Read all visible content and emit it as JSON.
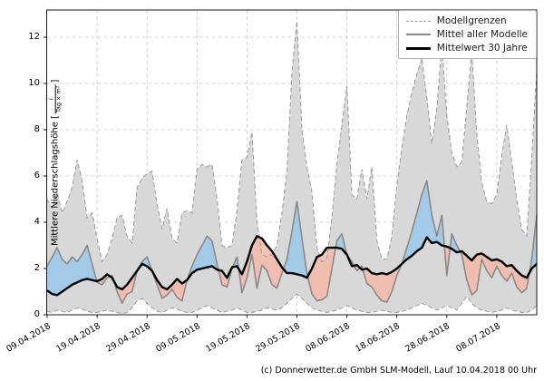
{
  "legend": {
    "items": [
      {
        "label": "Modellgrenzen",
        "style": "dashed-gray"
      },
      {
        "label": "Mittel aller Modelle",
        "style": "solid-gray"
      },
      {
        "label": "Mittelwert 30 Jahre",
        "style": "solid-black-thick"
      }
    ]
  },
  "axes": {
    "ylabel_prefix": "Mittlere Niederschlagshöhe [",
    "ylabel_suffix": "]",
    "unit_numerator": "l",
    "unit_denominator": "Tag × m²"
  },
  "footer": {
    "caption": "(c) Donnerwetter.de GmbH SLM-Modell, Lauf 10.04.2018 00 Uhr"
  },
  "colors": {
    "band_fill": "#d8d8d8",
    "band_edge": "#9a9a9a",
    "mean_line": "#8a8a8a",
    "clim_line": "#000000",
    "above_fill": "rgba(150,200,235,0.8)",
    "below_fill": "rgba(245,185,170,0.85)",
    "grid": "#c8c8c8",
    "spine": "#1a1a1a"
  },
  "chart_data": {
    "type": "area",
    "title": "",
    "xlabel": "",
    "ylabel": "Mittlere Niederschlagshöhe [l / (Tag × m²)]",
    "x_unit": "Tage ab 09.04.2018 (Tagesindex 0–98)",
    "x_tick_days": [
      0,
      10,
      20,
      30,
      40,
      50,
      60,
      70,
      80,
      90
    ],
    "x_tick_labels": [
      "09.04.2018",
      "19.04.2018",
      "29.04.2018",
      "09.05.2018",
      "19.05.2018",
      "29.05.2018",
      "08.06.2018",
      "18.06.2018",
      "28.06.2018",
      "08.07.2018"
    ],
    "y_ticks": [
      0,
      2,
      4,
      6,
      8,
      10,
      12
    ],
    "ylim": [
      0,
      13.18
    ],
    "grid": true,
    "legend_position": "upper right",
    "series": [
      {
        "name": "Modellgrenze oben (Maximum)",
        "values": [
          5.0,
          4.6,
          5.3,
          4.4,
          4.9,
          5.5,
          6.7,
          5.8,
          4.2,
          4.4,
          3.3,
          2.3,
          2.6,
          3.3,
          4.2,
          4.3,
          3.4,
          3.1,
          5.5,
          5.9,
          6.1,
          6.2,
          4.8,
          3.7,
          4.6,
          3.3,
          3.1,
          4.4,
          4.5,
          4.4,
          6.3,
          6.5,
          6.4,
          6.5,
          5.0,
          3.0,
          2.9,
          3.0,
          4.5,
          6.7,
          6.8,
          7.9,
          4.0,
          2.6,
          2.5,
          2.6,
          3.0,
          4.4,
          6.2,
          10.5,
          12.7,
          8.0,
          6.4,
          5.3,
          2.9,
          2.3,
          2.4,
          4.2,
          6.5,
          8.2,
          9.9,
          5.2,
          5.0,
          6.3,
          5.0,
          6.4,
          3.2,
          2.4,
          2.4,
          3.4,
          5.6,
          7.2,
          8.6,
          9.6,
          10.4,
          11.1,
          9.4,
          7.4,
          8.9,
          11.7,
          8.6,
          7.0,
          6.4,
          6.6,
          9.0,
          11.4,
          7.8,
          5.7,
          4.9,
          4.8,
          5.2,
          6.9,
          8.2,
          6.6,
          5.0,
          3.7,
          3.4,
          6.8,
          10.6
        ]
      },
      {
        "name": "Modellgrenze unten (Minimum)",
        "values": [
          0.15,
          0.1,
          0.2,
          0.15,
          0.1,
          0.2,
          0.3,
          0.25,
          0.15,
          0.1,
          0.1,
          0.15,
          0.2,
          0.15,
          0.1,
          0.05,
          0.1,
          0.3,
          0.6,
          0.7,
          0.5,
          0.3,
          0.15,
          0.1,
          0.2,
          0.3,
          0.25,
          0.15,
          0.1,
          0.1,
          0.2,
          0.3,
          0.4,
          0.3,
          0.2,
          0.1,
          0.15,
          0.2,
          0.3,
          0.2,
          0.1,
          0.1,
          0.15,
          0.2,
          0.3,
          0.25,
          0.2,
          0.3,
          0.5,
          0.7,
          0.9,
          0.7,
          0.5,
          0.3,
          0.2,
          0.15,
          0.1,
          0.15,
          0.2,
          0.3,
          0.4,
          0.3,
          0.2,
          0.15,
          0.1,
          0.1,
          0.15,
          0.2,
          0.15,
          0.1,
          0.1,
          0.15,
          0.2,
          0.3,
          0.4,
          0.5,
          0.4,
          0.3,
          0.2,
          0.3,
          0.4,
          0.3,
          0.2,
          0.5,
          0.8,
          0.5,
          0.3,
          0.2,
          0.15,
          0.1,
          0.15,
          0.2,
          0.3,
          0.2,
          0.15,
          0.1,
          0.1,
          0.2,
          0.4
        ]
      },
      {
        "name": "Mittel aller Modelle",
        "values": [
          2.1,
          2.5,
          2.9,
          2.4,
          2.2,
          2.5,
          2.3,
          2.6,
          3.0,
          2.2,
          1.4,
          1.3,
          1.6,
          1.7,
          1.0,
          0.5,
          0.9,
          1.0,
          1.9,
          2.3,
          2.5,
          1.9,
          1.3,
          0.7,
          0.85,
          1.1,
          0.75,
          0.6,
          1.5,
          2.1,
          2.6,
          3.0,
          3.4,
          3.2,
          2.2,
          1.3,
          1.2,
          2.0,
          2.5,
          0.95,
          1.6,
          2.6,
          1.15,
          2.15,
          1.9,
          1.3,
          1.15,
          1.8,
          2.4,
          3.6,
          4.9,
          3.3,
          1.8,
          0.9,
          0.6,
          0.65,
          0.8,
          2.0,
          3.2,
          3.5,
          2.6,
          2.3,
          1.9,
          2.1,
          1.35,
          1.2,
          0.85,
          0.6,
          0.55,
          1.0,
          1.7,
          2.2,
          2.9,
          3.6,
          4.4,
          5.2,
          5.8,
          4.3,
          3.4,
          4.3,
          1.7,
          3.5,
          3.0,
          2.6,
          1.5,
          0.85,
          1.05,
          2.4,
          1.9,
          1.6,
          2.1,
          1.7,
          1.45,
          1.8,
          1.2,
          0.95,
          1.15,
          2.4,
          4.3
        ]
      },
      {
        "name": "Mittelwert 30 Jahre",
        "values": [
          1.05,
          0.9,
          0.85,
          1.0,
          1.15,
          1.3,
          1.4,
          1.5,
          1.55,
          1.5,
          1.45,
          1.55,
          1.75,
          1.6,
          1.2,
          1.1,
          1.3,
          1.6,
          1.9,
          2.2,
          2.1,
          1.9,
          1.5,
          1.2,
          1.1,
          1.3,
          1.55,
          1.35,
          1.5,
          1.8,
          1.95,
          2.0,
          2.05,
          2.1,
          1.95,
          1.9,
          1.6,
          2.05,
          2.1,
          1.75,
          2.3,
          3.0,
          3.4,
          3.3,
          3.0,
          2.75,
          2.4,
          2.05,
          1.8,
          1.8,
          1.75,
          1.7,
          1.6,
          2.0,
          2.5,
          2.6,
          2.9,
          2.9,
          2.9,
          2.85,
          2.6,
          2.1,
          2.15,
          1.95,
          2.0,
          1.8,
          1.75,
          1.8,
          1.75,
          1.85,
          2.0,
          2.2,
          2.4,
          2.55,
          2.75,
          2.9,
          3.35,
          3.1,
          3.15,
          3.0,
          2.95,
          2.85,
          2.7,
          2.75,
          2.55,
          2.35,
          2.6,
          2.65,
          2.5,
          2.35,
          2.4,
          2.3,
          2.1,
          2.15,
          1.9,
          1.7,
          1.6,
          2.0,
          2.2
        ]
      }
    ]
  }
}
